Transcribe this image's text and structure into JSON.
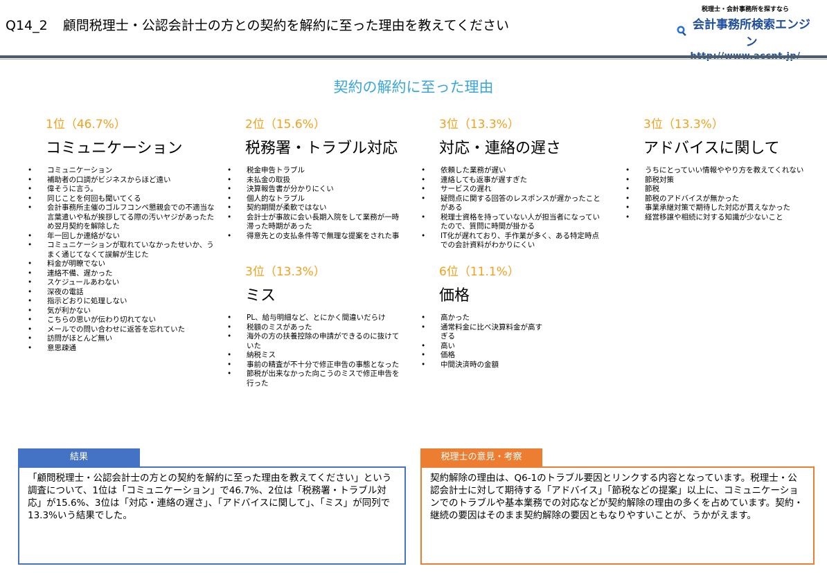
{
  "header": {
    "question_id": "Q14_2",
    "question_text": "顧問税理士・公認会計士の方との契約を解約に至った理由を教えてください"
  },
  "logo": {
    "tagline": "税理士・会計事務所を探すなら",
    "name": "会計事務所検索エンジン",
    "url": "http://www.accnt.jp/",
    "icon": "magnifier-icon"
  },
  "section_title": "契約の解約に至った理由",
  "colors": {
    "accent_orange": "#f2a11a",
    "title_blue": "#3aa6dd",
    "result_blue": "#4472c4",
    "opinion_orange": "#ed7d31"
  },
  "reasons": [
    {
      "rank": "1位（46.7%）",
      "category": "コミュニケーション",
      "items": [
        "コミュニケーション",
        "補助者の口調がビジネスからほど遠い",
        "偉そうに言う。",
        "同じことを何回も聞いてくる",
        "会計事務所主催のゴルフコンペ懇親会での不適当な言葉遣いや私が挨拶してる際の汚いヤジがあったため翌月契約を解除した",
        "年一回しか連絡がない",
        "コミュニケーションが取れていなかったせいか、うまく通じてなくて誤解が生じた",
        "料金が明瞭でない",
        "連絡不備、遅かった",
        "スケジュールあわない",
        "深夜の電話",
        "指示どおりに処理しない",
        "気が利かない",
        "こちらの思いが伝わり切れてない",
        "メールでの問い合わせに返答を忘れていた",
        "訪問がほとんど無い",
        "意思疎通"
      ]
    },
    {
      "rank": "2位（15.6%）",
      "category": "税務署・トラブル対応",
      "items": [
        "税金申告トラブル",
        "未払金の取扱",
        "決算報告書が分かりにくい",
        "個人的なトラブル",
        "契約期間が柔軟ではない",
        "会計士が事故に会い長期入院をして業務が一時滞った時期があった",
        "得意先との支払条件等で無理な提案をされた事"
      ]
    },
    {
      "rank": "3位（13.3%）",
      "category": "対応・連絡の遅さ",
      "items": [
        "依頼した業務が遅い",
        "連絡しても返事が遅すぎた",
        "サービスの遅れ",
        "疑問点に関する回答のレスポンスが遅かったことがある",
        "税理士資格を持っていない人が担当者になっていたので、質問に時間が掛かる",
        "IT化が遅れており、手作業が多く、ある特定時点での会計資料がわかりにくい"
      ]
    },
    {
      "rank": "3位（13.3%）",
      "category": "アドバイスに関して",
      "items": [
        "うちにとっていい情報ややり方を教えてくれない",
        "節税対策",
        "節税",
        "節税のアドバイスが無かった",
        "事業承継対策で期待した対応が貰えなかった",
        "経営移譲や相続に対する知識が少ないこと"
      ]
    },
    {
      "rank": "3位（13.3%）",
      "category": "ミス",
      "items": [
        "PL、給与明細など、とにかく間違いだらけ",
        "税額のミスがあった",
        "海外の方の扶養控除の申請ができるのに抜けていた",
        "納税ミス",
        "事前の精査が不十分で修正申告の事態となった",
        "節税が出来なかった向こうのミスで修正申告を行った"
      ]
    },
    {
      "rank": "6位（11.1%）",
      "category": "価格",
      "items": [
        "高かった",
        "通常料金に比べ決算料金が高すぎる",
        "高い",
        "価格",
        "中間決済時の金額"
      ]
    }
  ],
  "result_box": {
    "label": "結果",
    "text": "「顧問税理士・公認会計士の方との契約を解約に至った理由を教えてください」という調査について、1位は「コミュニケーション」で46.7%、2位は「税務署・トラブル対応」が15.6%、3位は「対応・連絡の遅さ」、「アドバイスに関して」、「ミス」が同列で13.3%いう結果でした。"
  },
  "opinion_box": {
    "label": "税理士の意見・考察",
    "text": "契約解除の理由は、Q6-1のトラブル要因とリンクする内容となっています。税理士・公認会計士に対して期待する「アドバイス」「節税などの提案」以上に、コミュニケーションでのトラブルや基本業務での対応などが契約解除の理由の多くを占めています。契約・継続の要因はそのまま契約解除の要因ともなりやすいことが、うかがえます。"
  }
}
